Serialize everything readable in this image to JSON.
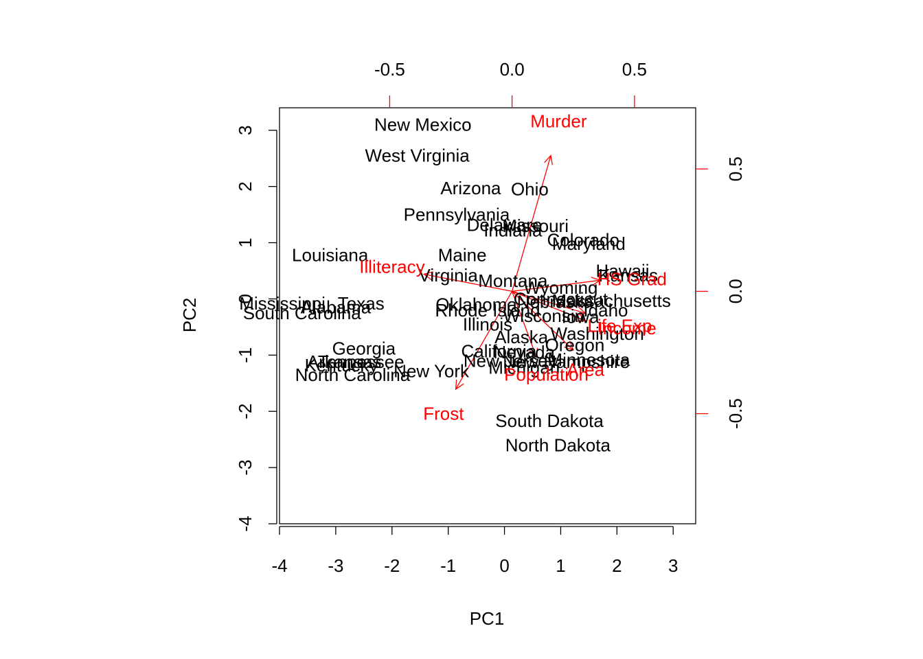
{
  "chart_data": {
    "type": "scatter",
    "subtype": "biplot",
    "xlabel": "PC1",
    "ylabel": "PC2",
    "xlim": [
      -4,
      3.4
    ],
    "ylim": [
      -4,
      3.4
    ],
    "xticks": [
      -4,
      -3,
      -2,
      -1,
      0,
      1,
      2,
      3
    ],
    "yticks": [
      -4,
      -3,
      -2,
      -1,
      0,
      1,
      2,
      3
    ],
    "loading_xlim": [
      -0.95,
      0.75
    ],
    "loading_ylim": [
      -0.95,
      0.75
    ],
    "top_ticks": [
      -0.5,
      0.0,
      0.5
    ],
    "right_ticks": [
      -0.5,
      0.0,
      0.5
    ],
    "top_tick_labels": [
      "-0.5",
      "0.0",
      "0.5"
    ],
    "right_tick_labels": [
      "-0.5",
      "0.0",
      "0.5"
    ],
    "points": [
      {
        "label": "New Mexico",
        "x": -1.45,
        "y": 3.1
      },
      {
        "label": "West Virginia",
        "x": -1.55,
        "y": 2.55
      },
      {
        "label": "Arizona",
        "x": -0.6,
        "y": 1.97
      },
      {
        "label": "Ohio",
        "x": 0.45,
        "y": 1.95
      },
      {
        "label": "Pennsylvania",
        "x": -0.85,
        "y": 1.5
      },
      {
        "label": "Delaware",
        "x": 0.0,
        "y": 1.32
      },
      {
        "label": "Missouri",
        "x": 0.55,
        "y": 1.3
      },
      {
        "label": "Indiana",
        "x": 0.15,
        "y": 1.22
      },
      {
        "label": "Colorado",
        "x": 1.4,
        "y": 1.05
      },
      {
        "label": "Maryland",
        "x": 1.5,
        "y": 0.98
      },
      {
        "label": "Louisiana",
        "x": -3.1,
        "y": 0.78
      },
      {
        "label": "Maine",
        "x": -0.75,
        "y": 0.78
      },
      {
        "label": "Virginia",
        "x": -1.0,
        "y": 0.42
      },
      {
        "label": "Montana",
        "x": 0.15,
        "y": 0.32
      },
      {
        "label": "Hawaii",
        "x": 2.1,
        "y": 0.5
      },
      {
        "label": "Kansas",
        "x": 2.2,
        "y": 0.42
      },
      {
        "label": "Wyoming",
        "x": 1.0,
        "y": 0.2
      },
      {
        "label": "Connecticut",
        "x": 1.0,
        "y": 0.0
      },
      {
        "label": "Massachusetts",
        "x": 1.9,
        "y": -0.03
      },
      {
        "label": "Nebraska",
        "x": 0.9,
        "y": -0.05
      },
      {
        "label": "Idaho",
        "x": 1.8,
        "y": -0.2
      },
      {
        "label": "Mississippi",
        "x": -3.95,
        "y": -0.08
      },
      {
        "label": "Texas",
        "x": -2.55,
        "y": -0.08
      },
      {
        "label": "Alabama",
        "x": -3.0,
        "y": -0.15
      },
      {
        "label": "South Carolina",
        "x": -3.6,
        "y": -0.25
      },
      {
        "label": "Oklahoma",
        "x": -0.5,
        "y": -0.1
      },
      {
        "label": "Rhode Island",
        "x": -0.3,
        "y": -0.2
      },
      {
        "label": "Wisconsin",
        "x": 0.7,
        "y": -0.3
      },
      {
        "label": "Iowa",
        "x": 1.35,
        "y": -0.32
      },
      {
        "label": "Illinois",
        "x": -0.3,
        "y": -0.45
      },
      {
        "label": "Washington",
        "x": 1.65,
        "y": -0.62
      },
      {
        "label": "Alaska",
        "x": 0.3,
        "y": -0.68
      },
      {
        "label": "Oregon",
        "x": 1.25,
        "y": -0.82
      },
      {
        "label": "Georgia",
        "x": -2.5,
        "y": -0.88
      },
      {
        "label": "California",
        "x": -0.1,
        "y": -0.93
      },
      {
        "label": "Nevada",
        "x": 0.35,
        "y": -0.95
      },
      {
        "label": "Tennessee",
        "x": -2.55,
        "y": -1.12
      },
      {
        "label": "Arkansas",
        "x": -2.85,
        "y": -1.12
      },
      {
        "label": "Kentucky",
        "x": -2.9,
        "y": -1.18
      },
      {
        "label": "New Jersey",
        "x": 0.1,
        "y": -1.1
      },
      {
        "label": "Minnesota",
        "x": 1.5,
        "y": -1.08
      },
      {
        "label": "New Hampshire",
        "x": 1.1,
        "y": -1.12
      },
      {
        "label": "New York",
        "x": -1.3,
        "y": -1.28
      },
      {
        "label": "Michigan",
        "x": 0.35,
        "y": -1.22
      },
      {
        "label": "North Carolina",
        "x": -2.7,
        "y": -1.35
      },
      {
        "label": "South Dakota",
        "x": 0.8,
        "y": -2.17
      },
      {
        "label": "North Dakota",
        "x": 0.95,
        "y": -2.6
      }
    ],
    "loadings": [
      {
        "label": "Murder",
        "x": 0.158,
        "y": 0.555,
        "lx": 0.19,
        "ly": 0.695
      },
      {
        "label": "Illiteracy",
        "x": -0.36,
        "y": 0.07,
        "lx": -0.49,
        "ly": 0.1
      },
      {
        "label": "HS Grad",
        "x": 0.36,
        "y": 0.045,
        "lx": 0.49,
        "ly": 0.05
      },
      {
        "label": "Income",
        "x": 0.3,
        "y": -0.12,
        "lx": 0.47,
        "ly": -0.15
      },
      {
        "label": "Life Exp",
        "x": 0.3,
        "y": -0.09,
        "lx": 0.44,
        "ly": -0.14
      },
      {
        "label": "Population",
        "x": 0.1,
        "y": -0.27,
        "lx": 0.14,
        "ly": -0.34
      },
      {
        "label": "Area",
        "x": 0.25,
        "y": -0.24,
        "lx": 0.3,
        "ly": -0.32
      },
      {
        "label": "Frost",
        "x": -0.23,
        "y": -0.4,
        "lx": -0.28,
        "ly": -0.5
      }
    ]
  }
}
